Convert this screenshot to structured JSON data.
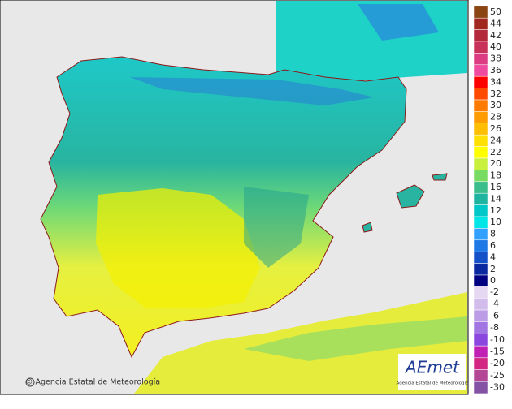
{
  "legend": {
    "items": [
      {
        "label": 50,
        "color": "#8b4513"
      },
      {
        "label": 44,
        "color": "#a0281e"
      },
      {
        "label": 42,
        "color": "#b4283c"
      },
      {
        "label": 40,
        "color": "#c8325a"
      },
      {
        "label": 38,
        "color": "#dc3c82"
      },
      {
        "label": 36,
        "color": "#f04aa0"
      },
      {
        "label": 34,
        "color": "#ff0000"
      },
      {
        "label": 32,
        "color": "#ff4a00"
      },
      {
        "label": 30,
        "color": "#ff7a00"
      },
      {
        "label": 28,
        "color": "#ff9c00"
      },
      {
        "label": 26,
        "color": "#ffbe00"
      },
      {
        "label": 24,
        "color": "#ffe000"
      },
      {
        "label": 22,
        "color": "#ffff00"
      },
      {
        "label": 20,
        "color": "#c8f03c"
      },
      {
        "label": 18,
        "color": "#78dc64"
      },
      {
        "label": 16,
        "color": "#3cbe8c"
      },
      {
        "label": 14,
        "color": "#1eb4a0"
      },
      {
        "label": 12,
        "color": "#00c8c8"
      },
      {
        "label": 10,
        "color": "#00e6e6"
      },
      {
        "label": 8,
        "color": "#32a0ff"
      },
      {
        "label": 6,
        "color": "#1e78e6"
      },
      {
        "label": 4,
        "color": "#1450c8"
      },
      {
        "label": 2,
        "color": "#0a28a0"
      },
      {
        "label": 0,
        "color": "#000080"
      }
    ],
    "negative_items": [
      {
        "label": -2,
        "color": "#e6d8f2"
      },
      {
        "label": -4,
        "color": "#d2bcec"
      },
      {
        "label": -6,
        "color": "#bc9ce6"
      },
      {
        "label": -8,
        "color": "#a276e2"
      },
      {
        "label": -10,
        "color": "#8c46e0"
      },
      {
        "label": -15,
        "color": "#c020b4"
      },
      {
        "label": -20,
        "color": "#d22682"
      },
      {
        "label": -25,
        "color": "#b44696"
      },
      {
        "label": -30,
        "color": "#8452a4"
      }
    ]
  },
  "credit": "© Agencia Estatal de Meteorología",
  "logo": {
    "name": "AEmet",
    "subtitle": "Agencia Estatal de Meteorología"
  }
}
